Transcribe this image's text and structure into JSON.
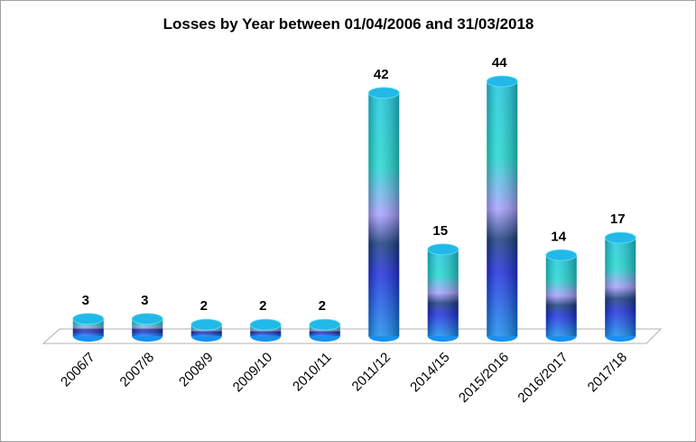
{
  "chart_data": {
    "type": "bar3d",
    "title": "Losses by Year between 01/04/2006  and 31/03/2018",
    "categories": [
      "2006/7",
      "2007/8",
      "2008/9",
      "2009/10",
      "2010/11",
      "2011/12",
      "2014/15",
      "2015/2016",
      "2016/2017",
      "2017/18"
    ],
    "values": [
      3,
      3,
      2,
      2,
      2,
      42,
      15,
      44,
      14,
      17
    ]
  }
}
